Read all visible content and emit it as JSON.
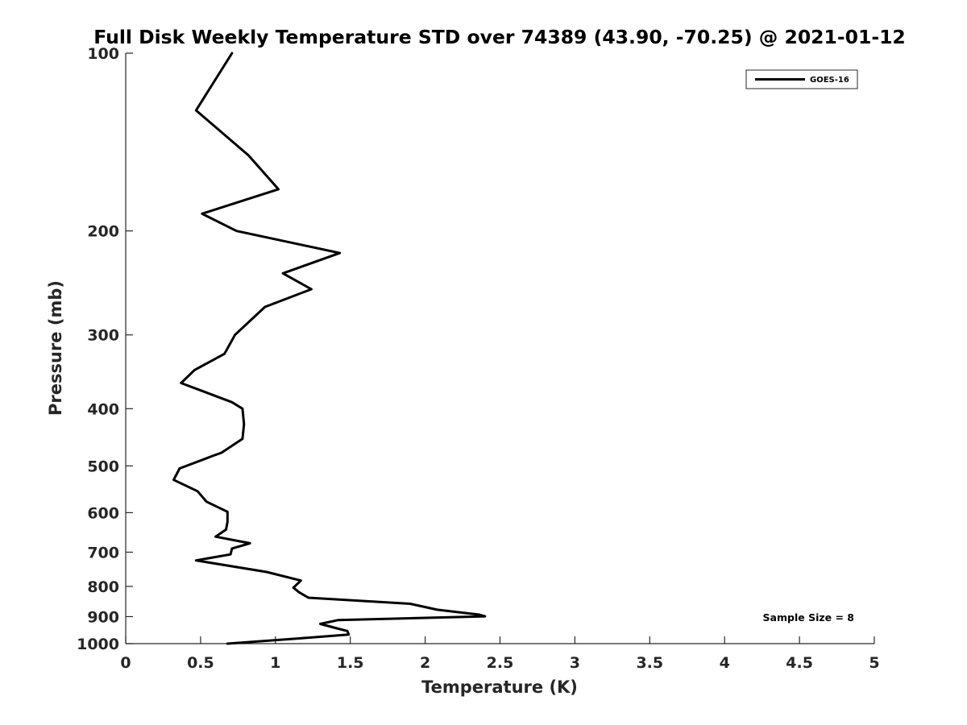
{
  "chart_data": {
    "type": "line",
    "title": "Full Disk Weekly Temperature STD over 74389 (43.90, -70.25) @ 2021-01-12",
    "xlabel": "Temperature (K)",
    "ylabel": "Pressure (mb)",
    "xlim": [
      0,
      5
    ],
    "ylim": [
      100,
      1000
    ],
    "y_scale": "log",
    "y_reversed": true,
    "xticks": [
      0,
      0.5,
      1,
      1.5,
      2,
      2.5,
      3,
      3.5,
      4,
      4.5,
      5
    ],
    "xtick_labels": [
      "0",
      "0.5",
      "1",
      "1.5",
      "2",
      "2.5",
      "3",
      "3.5",
      "4",
      "4.5",
      "5"
    ],
    "yticks": [
      100,
      200,
      300,
      400,
      500,
      600,
      700,
      800,
      900,
      1000
    ],
    "ytick_labels": [
      "100",
      "200",
      "300",
      "400",
      "500",
      "600",
      "700",
      "800",
      "900",
      "1000"
    ],
    "grid": false,
    "legend_position": "top-right",
    "series": [
      {
        "name": "GOES-16",
        "color": "#000000",
        "points": [
          [
            0.71,
            100
          ],
          [
            0.47,
            125
          ],
          [
            0.82,
            149
          ],
          [
            1.02,
            170
          ],
          [
            0.51,
            187
          ],
          [
            0.74,
            200
          ],
          [
            1.43,
            218
          ],
          [
            1.05,
            236
          ],
          [
            1.24,
            251
          ],
          [
            0.93,
            269
          ],
          [
            0.73,
            300
          ],
          [
            0.66,
            323
          ],
          [
            0.46,
            344
          ],
          [
            0.37,
            362
          ],
          [
            0.71,
            390
          ],
          [
            0.78,
            400
          ],
          [
            0.79,
            425
          ],
          [
            0.78,
            450
          ],
          [
            0.64,
            475
          ],
          [
            0.58,
            481
          ],
          [
            0.36,
            505
          ],
          [
            0.32,
            528
          ],
          [
            0.48,
            552
          ],
          [
            0.54,
            575
          ],
          [
            0.68,
            598
          ],
          [
            0.68,
            622
          ],
          [
            0.67,
            641
          ],
          [
            0.6,
            659
          ],
          [
            0.83,
            676
          ],
          [
            0.71,
            690
          ],
          [
            0.7,
            706
          ],
          [
            0.47,
            723
          ],
          [
            0.94,
            756
          ],
          [
            1.17,
            782
          ],
          [
            1.12,
            804
          ],
          [
            1.16,
            819
          ],
          [
            1.22,
            836
          ],
          [
            1.9,
            856
          ],
          [
            2.08,
            876
          ],
          [
            2.36,
            893
          ],
          [
            2.4,
            899
          ],
          [
            1.42,
            912
          ],
          [
            1.3,
            926
          ],
          [
            1.41,
            942
          ],
          [
            1.48,
            952
          ],
          [
            1.49,
            965
          ],
          [
            1.15,
            980
          ],
          [
            0.68,
            1000
          ]
        ]
      }
    ],
    "annotation": "Sample Size = 8"
  }
}
